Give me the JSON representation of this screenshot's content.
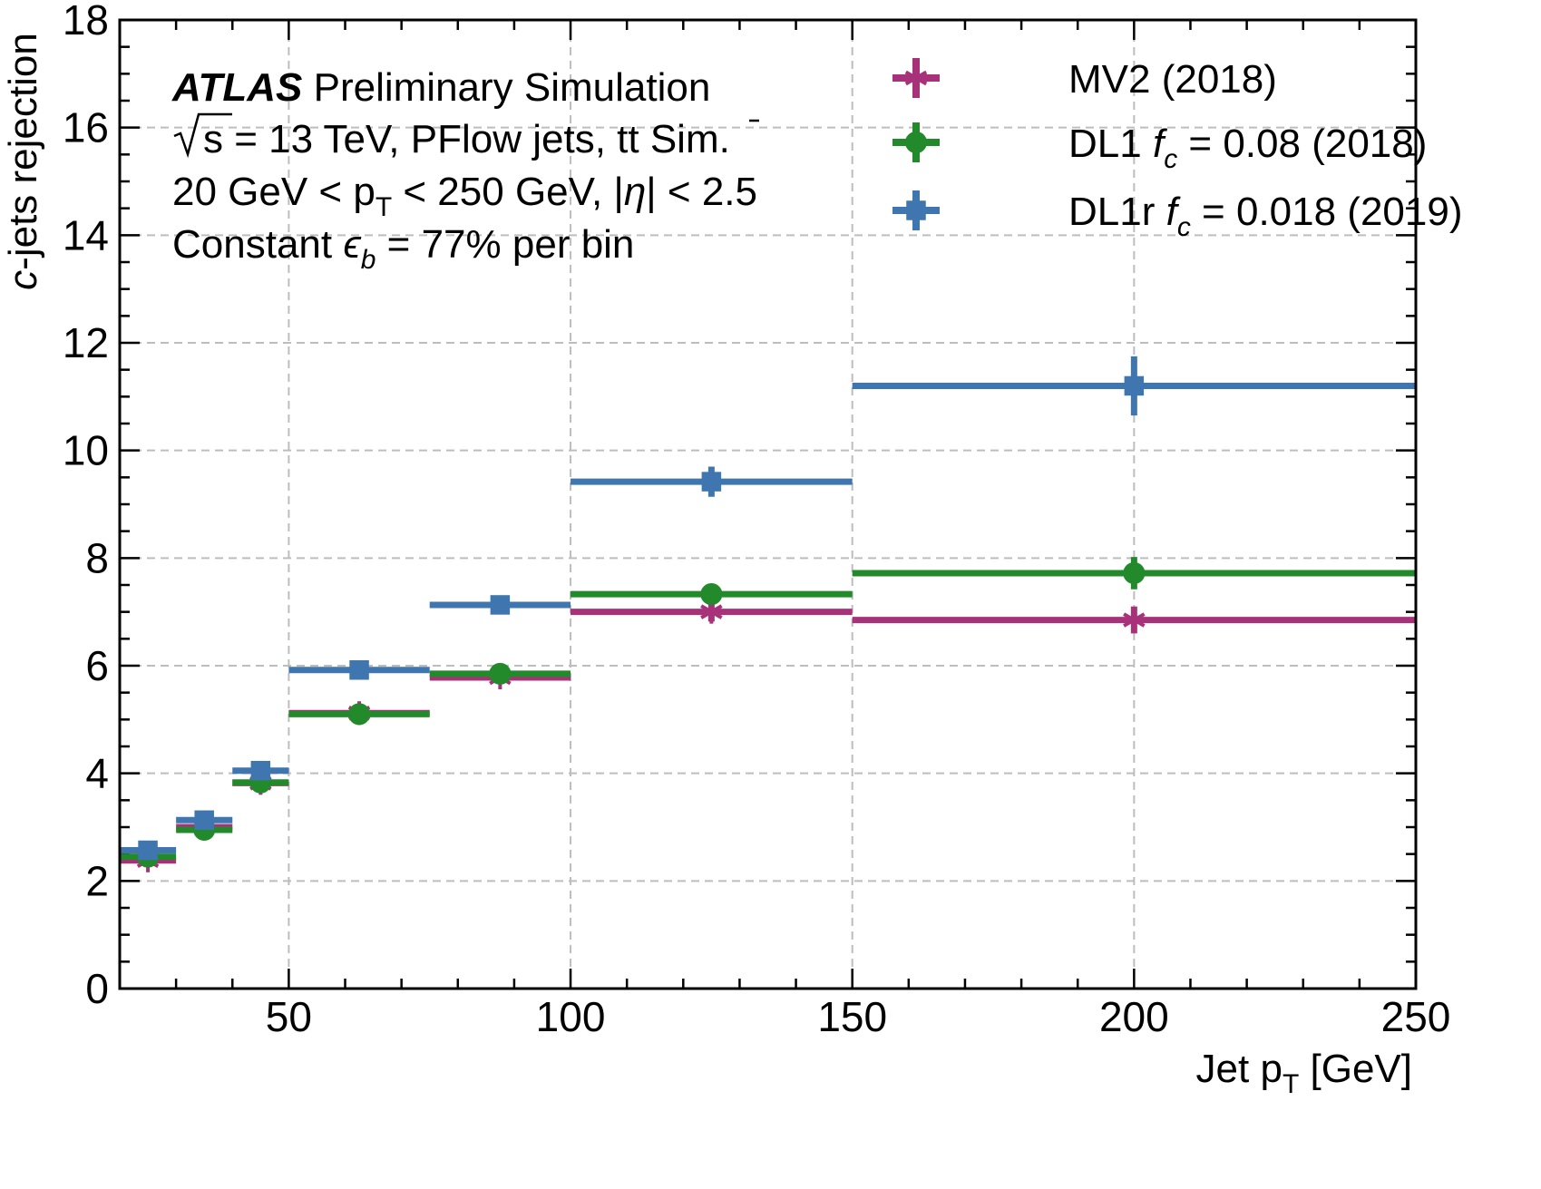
{
  "chart_data": {
    "type": "scatter",
    "xlabel_main": "Jet p",
    "xlabel_sub": "T",
    "xlabel_unit": "[GeV]",
    "ylabel_italic": "c",
    "ylabel_rest": "-jets rejection",
    "xlim": [
      20,
      250
    ],
    "ylim": [
      0,
      18
    ],
    "x_ticks": [
      50,
      100,
      150,
      200,
      250
    ],
    "x_tick_labels": [
      "50",
      "100",
      "150",
      "200",
      "250"
    ],
    "y_ticks": [
      0,
      2,
      4,
      6,
      8,
      10,
      12,
      14,
      16,
      18
    ],
    "y_tick_labels": [
      "0",
      "2",
      "4",
      "6",
      "8",
      "10",
      "12",
      "14",
      "16",
      "18"
    ],
    "grid": true,
    "legend_position": "top-right",
    "annotations": {
      "atlas": "ATLAS",
      "line1_rest": "Preliminary Simulation",
      "line2_root": "s",
      "line2_a": "= 13 TeV, PFlow jets, ",
      "line2_tt": "tt",
      "line2_b": " Sim.",
      "line3_a": "20 GeV < p",
      "line3_sub": "T",
      "line3_b": " < 250 GeV, |",
      "line3_eta": "η",
      "line3_c": "| < 2.5",
      "line4_a": "Constant ",
      "line4_eps": "ϵ",
      "line4_sub": "b",
      "line4_b": " = 77% per bin"
    },
    "bins": [
      [
        20,
        30
      ],
      [
        30,
        40
      ],
      [
        40,
        50
      ],
      [
        50,
        75
      ],
      [
        75,
        100
      ],
      [
        100,
        150
      ],
      [
        150,
        250
      ]
    ],
    "series": [
      {
        "name": "MV2 (2018)",
        "legend_prefix": "MV2 (2018)",
        "legend_f": "",
        "legend_sub": "",
        "legend_suffix": "",
        "color": "#A8327A",
        "marker": "star",
        "x": [
          25,
          35,
          45,
          62.5,
          87.5,
          125,
          200
        ],
        "values": [
          2.38,
          3.0,
          3.82,
          5.12,
          5.78,
          7.0,
          6.85
        ],
        "yerr": [
          0.08,
          0.08,
          0.1,
          0.12,
          0.12,
          0.18,
          0.25
        ]
      },
      {
        "name": "DL1 fc = 0.08 (2018)",
        "legend_prefix": "DL1 ",
        "legend_f": "f",
        "legend_sub": "c",
        "legend_suffix": " = 0.08 (2018)",
        "color": "#238A2C",
        "marker": "circle",
        "x": [
          25,
          35,
          45,
          62.5,
          87.5,
          125,
          200
        ],
        "values": [
          2.45,
          2.95,
          3.83,
          5.1,
          5.85,
          7.33,
          7.72
        ],
        "yerr": [
          0.08,
          0.08,
          0.1,
          0.12,
          0.12,
          0.18,
          0.3
        ]
      },
      {
        "name": "DL1r fc = 0.018 (2019)",
        "legend_prefix": "DL1r ",
        "legend_f": "f",
        "legend_sub": "c",
        "legend_suffix": " = 0.018 (2019)",
        "color": "#3F76B0",
        "marker": "square",
        "x": [
          25,
          35,
          45,
          62.5,
          87.5,
          125,
          200
        ],
        "values": [
          2.57,
          3.13,
          4.05,
          5.92,
          7.13,
          9.42,
          11.2
        ],
        "yerr": [
          0.08,
          0.1,
          0.12,
          0.15,
          0.15,
          0.28,
          0.55
        ]
      }
    ]
  }
}
